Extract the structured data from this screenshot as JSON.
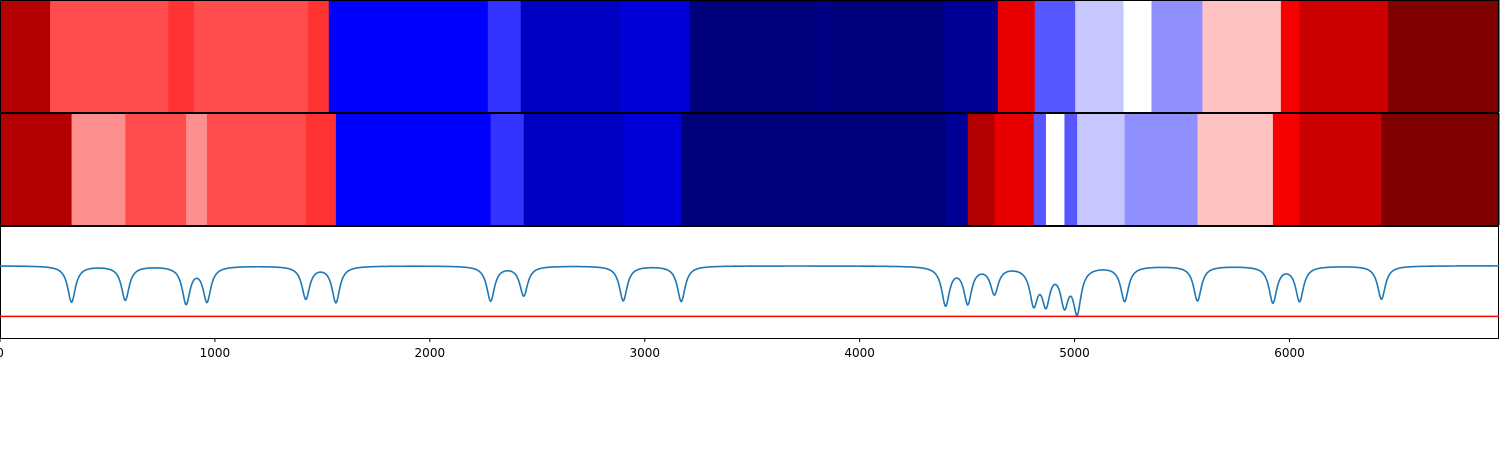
{
  "chart_data": {
    "type": "heatmap",
    "title": "",
    "xlabel": "",
    "ylabel": "",
    "xlim": [
      0,
      6975
    ],
    "x_ticks": [
      0,
      1000,
      2000,
      3000,
      4000,
      5000,
      6000
    ],
    "x_tick_labels": [
      "0",
      "1000",
      "2000",
      "3000",
      "4000",
      "5000",
      "6000"
    ],
    "colormap": "seismic",
    "value_range": [
      -1,
      1
    ],
    "rows": [
      {
        "segments": [
          {
            "x0": 0,
            "x1": 233,
            "value": 0.8
          },
          {
            "x0": 233,
            "x1": 783,
            "value": 0.35
          },
          {
            "x0": 783,
            "x1": 903,
            "value": 0.4
          },
          {
            "x0": 903,
            "x1": 1433,
            "value": 0.35
          },
          {
            "x0": 1433,
            "x1": 1530,
            "value": 0.4
          },
          {
            "x0": 1530,
            "x1": 2270,
            "value": -0.5
          },
          {
            "x0": 2270,
            "x1": 2423,
            "value": -0.4
          },
          {
            "x0": 2423,
            "x1": 2890,
            "value": -0.67
          },
          {
            "x0": 2890,
            "x1": 3210,
            "value": -0.6
          },
          {
            "x0": 3210,
            "x1": 3800,
            "value": -0.87
          },
          {
            "x0": 3800,
            "x1": 3880,
            "value": -0.84
          },
          {
            "x0": 3880,
            "x1": 4390,
            "value": -0.87
          },
          {
            "x0": 4390,
            "x1": 4643,
            "value": -0.79
          },
          {
            "x0": 4643,
            "x1": 4815,
            "value": 0.59
          },
          {
            "x0": 4815,
            "x1": 5003,
            "value": -0.33
          },
          {
            "x0": 5003,
            "x1": 5228,
            "value": -0.11
          },
          {
            "x0": 5228,
            "x1": 5358,
            "value": 0.0
          },
          {
            "x0": 5358,
            "x1": 5595,
            "value": -0.22
          },
          {
            "x0": 5595,
            "x1": 5960,
            "value": 0.12
          },
          {
            "x0": 5960,
            "x1": 6045,
            "value": 0.53
          },
          {
            "x0": 6045,
            "x1": 6458,
            "value": 0.7
          },
          {
            "x0": 6458,
            "x1": 6975,
            "value": 1.0
          }
        ]
      },
      {
        "segments": [
          {
            "x0": 0,
            "x1": 333,
            "value": 0.8
          },
          {
            "x0": 333,
            "x1": 583,
            "value": 0.22
          },
          {
            "x0": 583,
            "x1": 866,
            "value": 0.35
          },
          {
            "x0": 866,
            "x1": 963,
            "value": 0.22
          },
          {
            "x0": 963,
            "x1": 1423,
            "value": 0.35
          },
          {
            "x0": 1423,
            "x1": 1563,
            "value": 0.4
          },
          {
            "x0": 1563,
            "x1": 2283,
            "value": -0.5
          },
          {
            "x0": 2283,
            "x1": 2437,
            "value": -0.4
          },
          {
            "x0": 2437,
            "x1": 2900,
            "value": -0.67
          },
          {
            "x0": 2900,
            "x1": 3170,
            "value": -0.6
          },
          {
            "x0": 3170,
            "x1": 4400,
            "value": -0.87
          },
          {
            "x0": 4400,
            "x1": 4503,
            "value": -0.79
          },
          {
            "x0": 4503,
            "x1": 4627,
            "value": 0.8
          },
          {
            "x0": 4627,
            "x1": 4810,
            "value": 0.59
          },
          {
            "x0": 4810,
            "x1": 4867,
            "value": -0.33
          },
          {
            "x0": 4867,
            "x1": 4953,
            "value": 0.0
          },
          {
            "x0": 4953,
            "x1": 5012,
            "value": -0.33
          },
          {
            "x0": 5012,
            "x1": 5233,
            "value": -0.11
          },
          {
            "x0": 5233,
            "x1": 5572,
            "value": -0.22
          },
          {
            "x0": 5572,
            "x1": 5923,
            "value": 0.12
          },
          {
            "x0": 5923,
            "x1": 6047,
            "value": 0.53
          },
          {
            "x0": 6047,
            "x1": 6428,
            "value": 0.7
          },
          {
            "x0": 6428,
            "x1": 6975,
            "value": 1.0
          }
        ]
      }
    ],
    "signal_line": {
      "color": "#1f77b4",
      "baseline": 1.0,
      "y_range": [
        0,
        1.55
      ],
      "dips": [
        {
          "x": 333,
          "depth": 0.5
        },
        {
          "x": 583,
          "depth": 0.47
        },
        {
          "x": 866,
          "depth": 0.51
        },
        {
          "x": 963,
          "depth": 0.48
        },
        {
          "x": 1423,
          "depth": 0.45
        },
        {
          "x": 1563,
          "depth": 0.5
        },
        {
          "x": 2283,
          "depth": 0.48
        },
        {
          "x": 2437,
          "depth": 0.41
        },
        {
          "x": 2900,
          "depth": 0.48
        },
        {
          "x": 3170,
          "depth": 0.49
        },
        {
          "x": 4400,
          "depth": 0.53
        },
        {
          "x": 4503,
          "depth": 0.5
        },
        {
          "x": 4627,
          "depth": 0.37
        },
        {
          "x": 4810,
          "depth": 0.49
        },
        {
          "x": 4867,
          "depth": 0.48
        },
        {
          "x": 4953,
          "depth": 0.49
        },
        {
          "x": 5012,
          "depth": 0.6
        },
        {
          "x": 5233,
          "depth": 0.48
        },
        {
          "x": 5572,
          "depth": 0.48
        },
        {
          "x": 5923,
          "depth": 0.5
        },
        {
          "x": 6047,
          "depth": 0.48
        },
        {
          "x": 6428,
          "depth": 0.46
        }
      ]
    },
    "threshold_line": {
      "color": "#ff0000",
      "value": 0.3
    }
  }
}
